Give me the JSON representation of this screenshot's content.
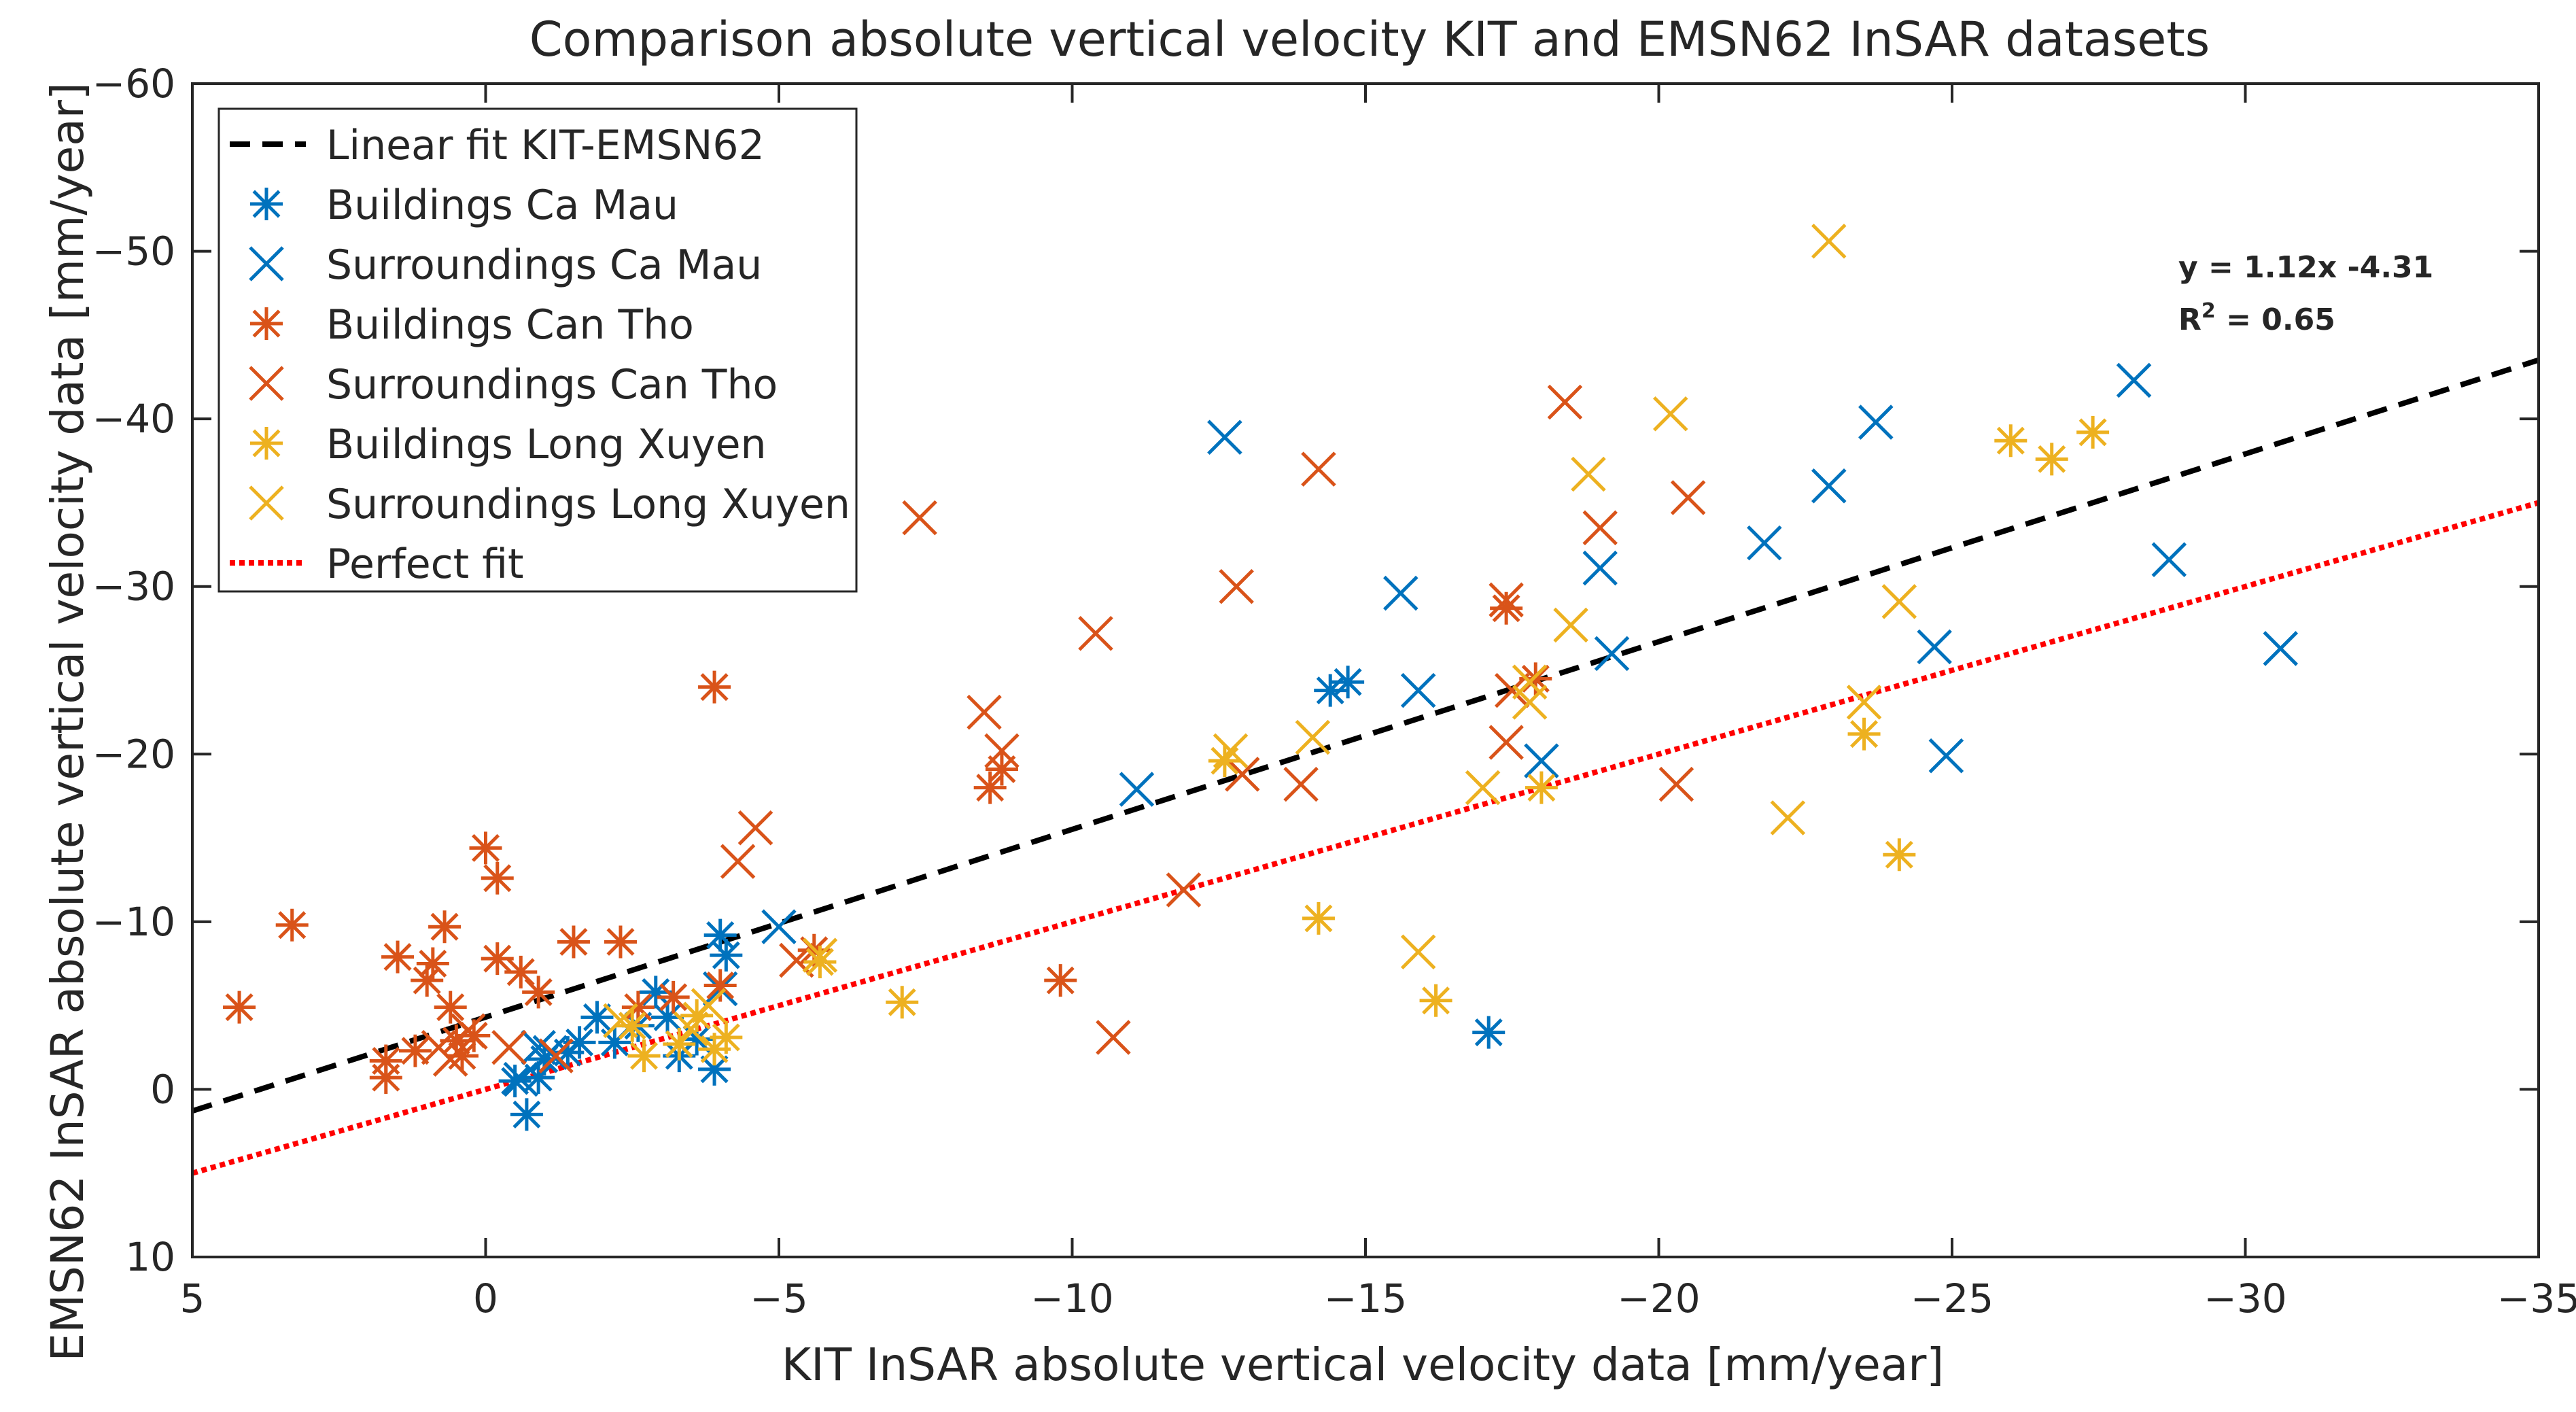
{
  "chart_data": {
    "type": "scatter",
    "title": "Comparison absolute vertical velocity KIT and EMSN62 InSAR datasets",
    "xlabel": "KIT InSAR absolute vertical velocity data [mm/year]",
    "ylabel": "EMSN62 InSAR absolute vertical velocity data [mm/year]",
    "xlim": [
      5,
      -35
    ],
    "ylim": [
      10,
      -60
    ],
    "xticks": [
      5,
      0,
      -5,
      -10,
      -15,
      -20,
      -25,
      -30,
      -35
    ],
    "yticks": [
      10,
      0,
      -10,
      -20,
      -30,
      -40,
      -50,
      -60
    ],
    "xtick_labels": [
      "5",
      "0",
      "−5",
      "−10",
      "−15",
      "−20",
      "−25",
      "−30",
      "−35"
    ],
    "ytick_labels": [
      "10",
      "0",
      "−10",
      "−20",
      "−30",
      "−40",
      "−50",
      "−60"
    ],
    "grid": false,
    "legend_position": "top-left",
    "annotation": {
      "equation": "y = 1.12x -4.31",
      "r2_prefix": "R",
      "r2_sup": "2",
      "r2_suffix": " = 0.65"
    },
    "lines": [
      {
        "name": "Linear fit KIT-EMSN62",
        "slope": 1.12,
        "intercept": -4.31,
        "color": "#000000",
        "style": "dashed"
      },
      {
        "name": "Perfect fit",
        "slope": 1.0,
        "intercept": 0,
        "color": "#ff0000",
        "style": "dotted"
      }
    ],
    "legend": [
      {
        "label": "Linear fit KIT-EMSN62",
        "kind": "dash",
        "color": "#000000"
      },
      {
        "label": "Buildings Ca Mau",
        "kind": "asterisk",
        "color": "#0072bd"
      },
      {
        "label": "Surroundings Ca Mau",
        "kind": "cross",
        "color": "#0072bd"
      },
      {
        "label": "Buildings Can Tho",
        "kind": "asterisk",
        "color": "#d95319"
      },
      {
        "label": "Surroundings Can Tho",
        "kind": "cross",
        "color": "#d95319"
      },
      {
        "label": "Buildings Long Xuyen",
        "kind": "asterisk",
        "color": "#edb120"
      },
      {
        "label": "Surroundings Long Xuyen",
        "kind": "cross",
        "color": "#edb120"
      },
      {
        "label": "Perfect fit",
        "kind": "dot",
        "color": "#ff0000"
      }
    ],
    "series": [
      {
        "name": "Buildings Ca Mau",
        "marker": "asterisk",
        "color": "#0072bd",
        "points": [
          [
            -0.5,
            -0.5
          ],
          [
            -0.7,
            1.5
          ],
          [
            -0.9,
            -0.7
          ],
          [
            -1.0,
            -1.8
          ],
          [
            -1.4,
            -2.2
          ],
          [
            -1.6,
            -2.8
          ],
          [
            -1.9,
            -4.3
          ],
          [
            -2.2,
            -2.8
          ],
          [
            -2.6,
            -3.8
          ],
          [
            -2.9,
            -5.8
          ],
          [
            -3.1,
            -4.3
          ],
          [
            -3.3,
            -2.0
          ],
          [
            -3.6,
            -3.0
          ],
          [
            -3.9,
            -1.2
          ],
          [
            -4.0,
            -9.2
          ],
          [
            -4.1,
            -8.0
          ],
          [
            -14.4,
            -23.8
          ],
          [
            -14.7,
            -24.3
          ],
          [
            -17.1,
            -3.4
          ]
        ]
      },
      {
        "name": "Surroundings Ca Mau",
        "marker": "cross",
        "color": "#0072bd",
        "points": [
          [
            -0.6,
            -0.6
          ],
          [
            -0.9,
            -2.5
          ],
          [
            -1.1,
            -2.2
          ],
          [
            -4.0,
            -6.0
          ],
          [
            -5.0,
            -9.7
          ],
          [
            -11.1,
            -17.9
          ],
          [
            -12.6,
            -38.9
          ],
          [
            -15.6,
            -29.6
          ],
          [
            -15.9,
            -23.8
          ],
          [
            -18.0,
            -19.6
          ],
          [
            -19.0,
            -31.1
          ],
          [
            -19.2,
            -26.0
          ],
          [
            -21.8,
            -32.6
          ],
          [
            -22.9,
            -36.0
          ],
          [
            -23.7,
            -39.8
          ],
          [
            -24.7,
            -26.4
          ],
          [
            -24.9,
            -19.9
          ],
          [
            -28.1,
            -42.3
          ],
          [
            -28.7,
            -31.6
          ],
          [
            -30.6,
            -26.3
          ]
        ]
      },
      {
        "name": "Buildings Can Tho",
        "marker": "asterisk",
        "color": "#d95319",
        "points": [
          [
            4.2,
            -4.9
          ],
          [
            3.3,
            -9.8
          ],
          [
            1.7,
            -0.7
          ],
          [
            1.7,
            -1.7
          ],
          [
            1.5,
            -7.9
          ],
          [
            1.2,
            -2.3
          ],
          [
            1.0,
            -6.5
          ],
          [
            0.9,
            -7.5
          ],
          [
            0.7,
            -9.7
          ],
          [
            0.6,
            -4.9
          ],
          [
            0.5,
            -2.9
          ],
          [
            0.4,
            -2.0
          ],
          [
            0.2,
            -3.2
          ],
          [
            0.0,
            -14.4
          ],
          [
            -0.2,
            -12.6
          ],
          [
            -0.2,
            -7.8
          ],
          [
            -0.6,
            -7.0
          ],
          [
            -0.9,
            -5.8
          ],
          [
            -1.5,
            -8.8
          ],
          [
            -2.3,
            -8.8
          ],
          [
            -2.6,
            -4.9
          ],
          [
            -3.2,
            -5.5
          ],
          [
            -3.9,
            -24.0
          ],
          [
            -4.0,
            -6.2
          ],
          [
            -5.6,
            -8.3
          ],
          [
            -8.6,
            -18.0
          ],
          [
            -8.8,
            -19.1
          ],
          [
            -9.8,
            -6.5
          ],
          [
            -17.4,
            -28.7
          ],
          [
            -17.9,
            -24.5
          ]
        ]
      },
      {
        "name": "Surroundings Can Tho",
        "marker": "cross",
        "color": "#d95319",
        "points": [
          [
            0.8,
            -2.5
          ],
          [
            0.6,
            -1.8
          ],
          [
            0.3,
            -3.5
          ],
          [
            -0.4,
            -2.5
          ],
          [
            -1.2,
            -2.0
          ],
          [
            -4.3,
            -13.6
          ],
          [
            -4.6,
            -15.6
          ],
          [
            -5.3,
            -7.7
          ],
          [
            -7.4,
            -34.1
          ],
          [
            -8.5,
            -22.5
          ],
          [
            -8.8,
            -20.2
          ],
          [
            -10.4,
            -27.2
          ],
          [
            -10.7,
            -3.1
          ],
          [
            -11.9,
            -11.9
          ],
          [
            -12.8,
            -30.0
          ],
          [
            -12.9,
            -18.8
          ],
          [
            -13.9,
            -18.2
          ],
          [
            -14.2,
            -37.0
          ],
          [
            -17.4,
            -20.7
          ],
          [
            -17.4,
            -29.2
          ],
          [
            -17.5,
            -23.8
          ],
          [
            -18.4,
            -41.0
          ],
          [
            -19.0,
            -33.5
          ],
          [
            -20.3,
            -18.2
          ],
          [
            -20.5,
            -35.3
          ]
        ]
      },
      {
        "name": "Buildings Long Xuyen",
        "marker": "asterisk",
        "color": "#edb120",
        "points": [
          [
            -2.5,
            -3.8
          ],
          [
            -2.7,
            -2.0
          ],
          [
            -3.3,
            -2.7
          ],
          [
            -3.6,
            -4.4
          ],
          [
            -3.9,
            -2.4
          ],
          [
            -4.1,
            -3.1
          ],
          [
            -5.7,
            -7.6
          ],
          [
            -7.1,
            -5.2
          ],
          [
            -12.6,
            -19.6
          ],
          [
            -14.2,
            -10.2
          ],
          [
            -16.2,
            -5.3
          ],
          [
            -18.0,
            -18.0
          ],
          [
            -23.5,
            -21.2
          ],
          [
            -24.1,
            -14.0
          ],
          [
            -26.0,
            -38.7
          ],
          [
            -26.7,
            -37.6
          ],
          [
            -27.4,
            -39.2
          ]
        ]
      },
      {
        "name": "Surroundings Long Xuyen",
        "marker": "cross",
        "color": "#edb120",
        "points": [
          [
            -2.3,
            -4.1
          ],
          [
            -3.5,
            -3.6
          ],
          [
            -3.8,
            -5.0
          ],
          [
            -5.7,
            -8.0
          ],
          [
            -12.7,
            -20.2
          ],
          [
            -14.1,
            -21.0
          ],
          [
            -15.9,
            -8.2
          ],
          [
            -17.0,
            -18.0
          ],
          [
            -17.8,
            -23.1
          ],
          [
            -17.8,
            -24.3
          ],
          [
            -18.5,
            -27.7
          ],
          [
            -18.8,
            -36.7
          ],
          [
            -20.2,
            -40.3
          ],
          [
            -22.2,
            -16.2
          ],
          [
            -22.9,
            -50.6
          ],
          [
            -23.5,
            -23.1
          ],
          [
            -24.1,
            -29.1
          ]
        ]
      }
    ]
  }
}
